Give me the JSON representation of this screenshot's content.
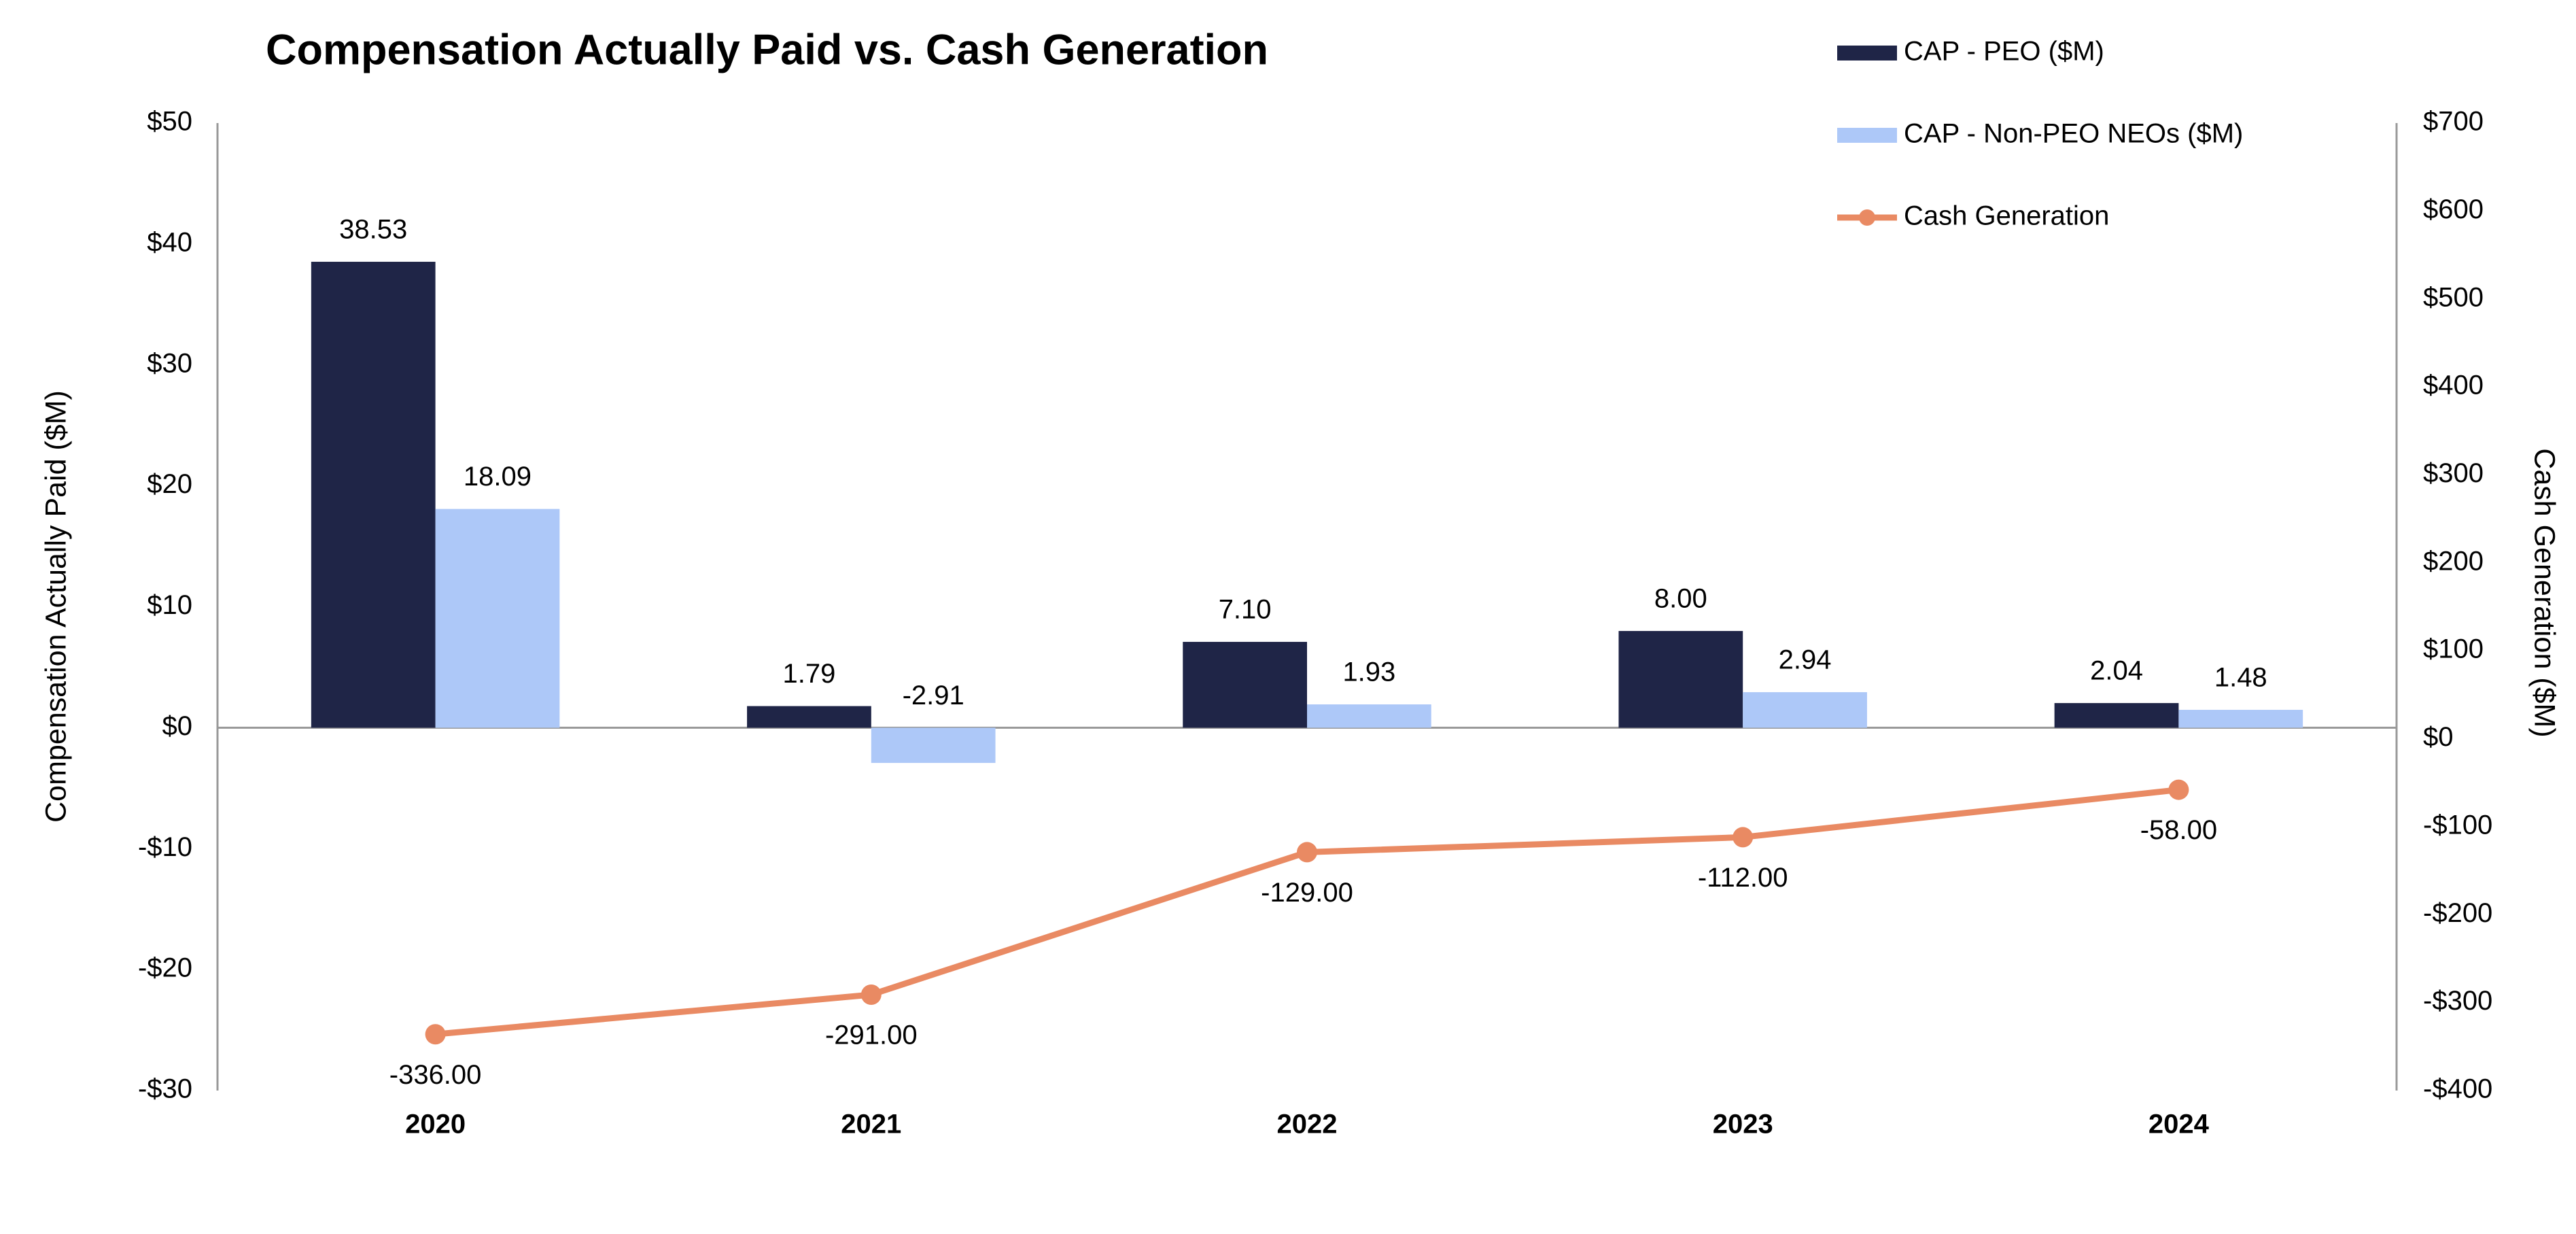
{
  "chart_data": {
    "type": "bar-line",
    "title": "Compensation Actually Paid vs. Cash Generation",
    "y_label": "Compensation Actually Paid ($M)",
    "y2_label": "Cash Generation ($M)",
    "categories": [
      "2020",
      "2021",
      "2022",
      "2023",
      "2024"
    ],
    "series": [
      {
        "name": "CAP - PEO ($M)",
        "type": "bar",
        "color": "#1f2547",
        "values": [
          38.53,
          1.79,
          7.1,
          8.0,
          2.04
        ],
        "value_labels": [
          "38.53",
          "1.79",
          "7.10",
          "8.00",
          "2.04"
        ]
      },
      {
        "name": "CAP - Non-PEO NEOs ($M)",
        "type": "bar",
        "color": "#adc8f8",
        "values": [
          18.09,
          -2.91,
          1.93,
          2.94,
          1.48
        ],
        "value_labels": [
          "18.09",
          "-2.91",
          "1.93",
          "2.94",
          "1.48"
        ]
      },
      {
        "name": "Cash Generation",
        "type": "line",
        "axis": "y2",
        "color": "#e98a63",
        "values": [
          -336,
          -291,
          -129,
          -112,
          -58
        ],
        "value_labels": [
          "-336.00",
          "-291.00",
          "-129.00",
          "-112.00",
          "-58.00"
        ]
      }
    ],
    "ylim": [
      -30,
      50
    ],
    "yticks": [
      {
        "value": -30,
        "label": "-$30"
      },
      {
        "value": -20,
        "label": "-$20"
      },
      {
        "value": -10,
        "label": "-$10"
      },
      {
        "value": 0,
        "label": "$0"
      },
      {
        "value": 10,
        "label": "$10"
      },
      {
        "value": 20,
        "label": "$20"
      },
      {
        "value": 30,
        "label": "$30"
      },
      {
        "value": 40,
        "label": "$40"
      },
      {
        "value": 50,
        "label": "$50"
      }
    ],
    "y2lim": [
      -400,
      700
    ],
    "y2ticks": [
      {
        "value": -400,
        "label": "-$400"
      },
      {
        "value": -300,
        "label": "-$300"
      },
      {
        "value": -200,
        "label": "-$200"
      },
      {
        "value": -100,
        "label": "-$100"
      },
      {
        "value": 0,
        "label": "$0"
      },
      {
        "value": 100,
        "label": "$100"
      },
      {
        "value": 200,
        "label": "$200"
      },
      {
        "value": 300,
        "label": "$300"
      },
      {
        "value": 400,
        "label": "$400"
      },
      {
        "value": 500,
        "label": "$500"
      },
      {
        "value": 600,
        "label": "$600"
      },
      {
        "value": 700,
        "label": "$700"
      }
    ],
    "legend": "top-right"
  }
}
